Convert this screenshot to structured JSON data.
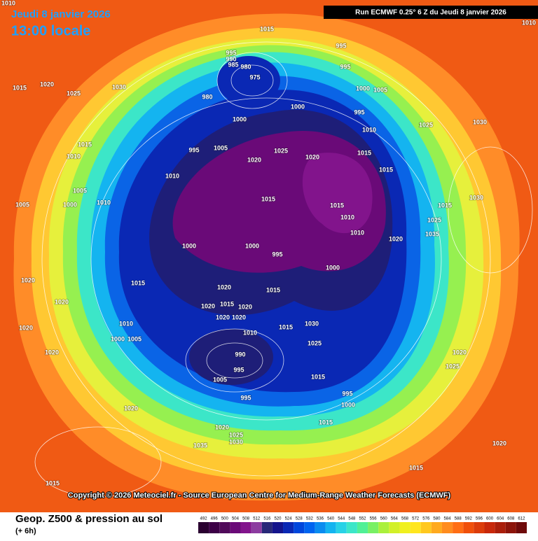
{
  "header": {
    "date": "Jeudi 8 janvier 2026",
    "time": "13:00 locale",
    "run": "Run ECMWF 0.25° 6 Z du Jeudi 8 janvier 2026"
  },
  "map": {
    "isobar_labels": [
      "1010",
      "1010",
      "1015",
      "995",
      "995",
      "990",
      "985",
      "980",
      "975",
      "995",
      "1015",
      "1020",
      "1025",
      "1030",
      "980",
      "1000",
      "1005",
      "1000",
      "995",
      "1000",
      "1010",
      "1025",
      "1030",
      "1015",
      "1010",
      "995",
      "1005",
      "1025",
      "1020",
      "1020",
      "1015",
      "1015",
      "1010",
      "1005",
      "1005",
      "1000",
      "1010",
      "1015",
      "1015",
      "1030",
      "1015",
      "1010",
      "1025",
      "1010",
      "1035",
      "1020",
      "1000",
      "1000",
      "995",
      "1000",
      "1020",
      "1015",
      "1020",
      "1015",
      "1020",
      "1020",
      "1015",
      "1020",
      "1020",
      "1020",
      "1010",
      "1015",
      "1030",
      "1020",
      "1010",
      "1000",
      "1005",
      "1025",
      "1020",
      "990",
      "995",
      "1015",
      "1005",
      "995",
      "995",
      "1000",
      "1020",
      "1015",
      "1020",
      "1025",
      "1030",
      "1035",
      "1020",
      "1025",
      "1020",
      "1015",
      "1015"
    ],
    "copyright": "Copyright © 2026 Meteociel.fr - Source European Centre for Medium-Range Weather Forecasts (ECMWF)"
  },
  "footer": {
    "title": "Geop. Z500 & pression au sol",
    "subtitle": "(+ 6h)",
    "scale_labels": [
      "492",
      "496",
      "500",
      "504",
      "508",
      "512",
      "516",
      "520",
      "524",
      "528",
      "532",
      "536",
      "540",
      "544",
      "548",
      "552",
      "556",
      "560",
      "564",
      "568",
      "572",
      "576",
      "580",
      "584",
      "588",
      "592",
      "596",
      "600",
      "604",
      "608",
      "612"
    ],
    "scale_colors": [
      "#2a0030",
      "#3c0046",
      "#500a5a",
      "#6a0a78",
      "#82148c",
      "#8c3ca0",
      "#282878",
      "#14148c",
      "#0a28b4",
      "#0046dc",
      "#0064f0",
      "#0a8cf0",
      "#14b4f0",
      "#28d2e6",
      "#3ce6c8",
      "#50f096",
      "#78f064",
      "#aaf03c",
      "#d2f028",
      "#f0f01e",
      "#ffe61e",
      "#ffc81e",
      "#ffaa1e",
      "#ff8c1e",
      "#ff6e14",
      "#f0500a",
      "#dc3c0a",
      "#c8280a",
      "#aa1e0a",
      "#8c140a",
      "#6e0a0a"
    ]
  }
}
